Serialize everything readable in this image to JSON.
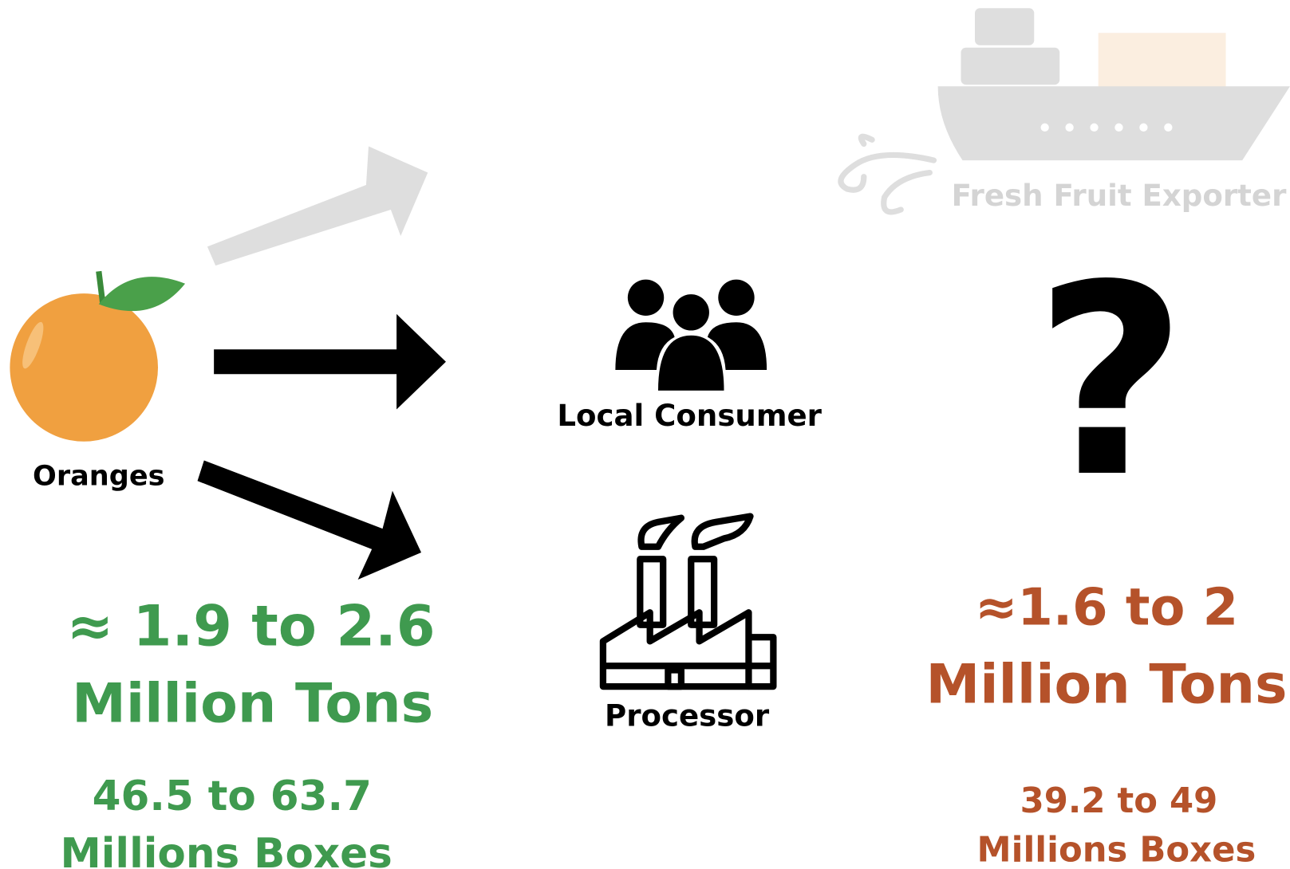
{
  "nodes": [
    {
      "label": "Oranges"
    },
    {
      "label": "Local Consumer"
    },
    {
      "label": "Processor"
    },
    {
      "label": "Fresh Fruit Exporter"
    },
    {
      "label": "?"
    }
  ],
  "local_supply": {
    "tons": "≈ 1.9 to 2.6",
    "tons_unit": "Million Tons",
    "boxes": "46.5 to 63.7",
    "boxes_unit": "Millions Boxes"
  },
  "export_supply": {
    "tons": "≈1.6 to 2",
    "tons_unit": "Million Tons",
    "boxes": "39.2 to 49",
    "boxes_unit": "Millions Boxes"
  }
}
